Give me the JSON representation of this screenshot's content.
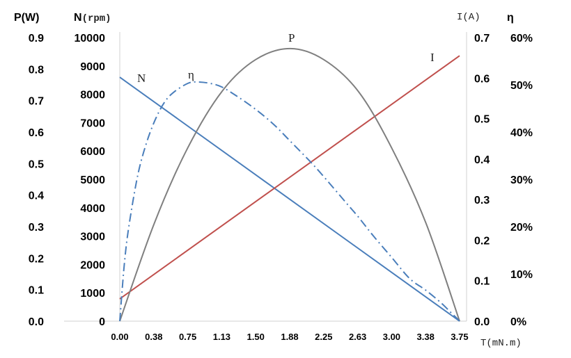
{
  "chart_data": {
    "type": "line",
    "axes": {
      "power": {
        "title": "P(W)",
        "ticks": [
          "0.0",
          "0.1",
          "0.2",
          "0.3",
          "0.4",
          "0.5",
          "0.6",
          "0.7",
          "0.8",
          "0.9"
        ],
        "range": [
          0,
          0.9
        ]
      },
      "speed": {
        "title_main": "N",
        "title_unit": "(rpm)",
        "ticks": [
          "0",
          "1000",
          "2000",
          "3000",
          "4000",
          "5000",
          "6000",
          "7000",
          "8000",
          "9000",
          "10000"
        ],
        "range": [
          0,
          10000
        ]
      },
      "current": {
        "title": "I(A)",
        "ticks": [
          "0.0",
          "0.1",
          "0.2",
          "0.3",
          "0.4",
          "0.5",
          "0.6",
          "0.7"
        ],
        "range": [
          0,
          0.7
        ]
      },
      "efficiency": {
        "title": "η",
        "ticks": [
          "0%",
          "10%",
          "20%",
          "30%",
          "40%",
          "50%",
          "60%"
        ],
        "range": [
          0,
          60
        ]
      },
      "torque": {
        "title": "T(mN.m)",
        "ticks": [
          "0.00",
          "0.38",
          "0.75",
          "1.13",
          "1.50",
          "1.88",
          "2.25",
          "2.63",
          "3.00",
          "3.38",
          "3.75"
        ],
        "range": [
          0,
          3.75
        ]
      }
    },
    "series": [
      {
        "name": "N",
        "axis": "speed",
        "color": "#4a7ebb",
        "style": "solid",
        "x": [
          0,
          3.75
        ],
        "y": [
          8600,
          0
        ]
      },
      {
        "name": "I",
        "axis": "current",
        "color": "#c0504d",
        "style": "solid",
        "x": [
          0,
          3.75
        ],
        "y": [
          0.055,
          0.655
        ]
      },
      {
        "name": "P",
        "axis": "power",
        "color": "#7f7f7f",
        "style": "solid",
        "x": [
          0,
          0.38,
          0.75,
          1.13,
          1.5,
          1.88,
          2.25,
          2.63,
          3.0,
          3.38,
          3.75
        ],
        "y": [
          0,
          0.31,
          0.55,
          0.73,
          0.83,
          0.865,
          0.83,
          0.73,
          0.55,
          0.31,
          0
        ]
      },
      {
        "name": "η",
        "axis": "efficiency",
        "color": "#4a7ebb",
        "style": "dashdot",
        "x": [
          0,
          0.05,
          0.1,
          0.2,
          0.3,
          0.4,
          0.5,
          0.6,
          0.75,
          0.85,
          1.0,
          1.13,
          1.3,
          1.5,
          1.7,
          1.88,
          2.1,
          2.25,
          2.5,
          2.63,
          2.8,
          3.0,
          3.2,
          3.38,
          3.55,
          3.65,
          3.72,
          3.75
        ],
        "y": [
          0,
          12,
          20,
          31,
          38,
          43,
          46.5,
          48.5,
          50.3,
          50.6,
          50.3,
          49.5,
          47.5,
          44.8,
          41.6,
          38.1,
          33.8,
          30.6,
          25,
          22.1,
          18,
          13.5,
          9,
          6.5,
          3.8,
          1.9,
          0.6,
          0
        ]
      }
    ]
  }
}
